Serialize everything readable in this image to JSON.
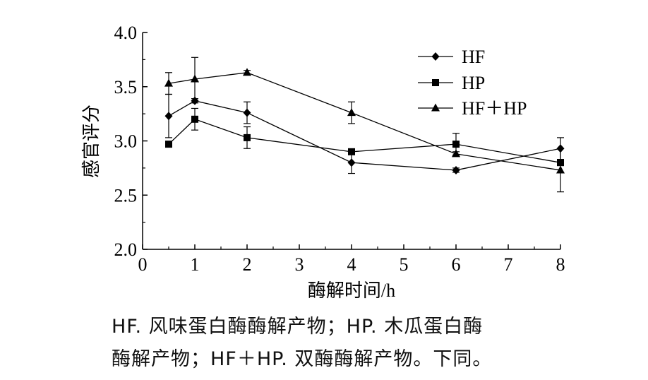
{
  "chart_data": {
    "type": "line",
    "ylabel": "感官评分",
    "xlabel": "酶解时间/h",
    "xlim": [
      0,
      8
    ],
    "ylim": [
      2.0,
      4.0
    ],
    "xticks": [
      "0",
      "1",
      "2",
      "3",
      "4",
      "5",
      "6",
      "7",
      "8"
    ],
    "yticks": [
      "2.0",
      "2.5",
      "3.0",
      "3.5",
      "4.0"
    ],
    "x": [
      0.5,
      1,
      2,
      4,
      6,
      8
    ],
    "legend_position": "top-right",
    "grid": false,
    "series": [
      {
        "name": "HF",
        "marker": "diamond",
        "values": [
          3.23,
          3.37,
          3.26,
          2.8,
          2.73,
          2.93
        ],
        "errors": [
          0.2,
          0.02,
          0.1,
          0.1,
          0.02,
          0.1
        ]
      },
      {
        "name": "HP",
        "marker": "square",
        "values": [
          2.97,
          3.2,
          3.03,
          2.9,
          2.97,
          2.8
        ],
        "errors": [
          0.02,
          0.1,
          0.1,
          0.02,
          0.1,
          0.02
        ]
      },
      {
        "name": "HF＋HP",
        "marker": "triangle",
        "values": [
          3.53,
          3.57,
          3.63,
          3.26,
          2.88,
          2.73
        ],
        "errors": [
          0.1,
          0.2,
          0.02,
          0.1,
          0.02,
          0.2
        ]
      }
    ]
  },
  "caption": {
    "line1": "HF. 风味蛋白酶酶解产物；HP. 木瓜蛋白酶",
    "line2": "酶解产物；HF＋HP. 双酶酶解产物。下同。"
  }
}
